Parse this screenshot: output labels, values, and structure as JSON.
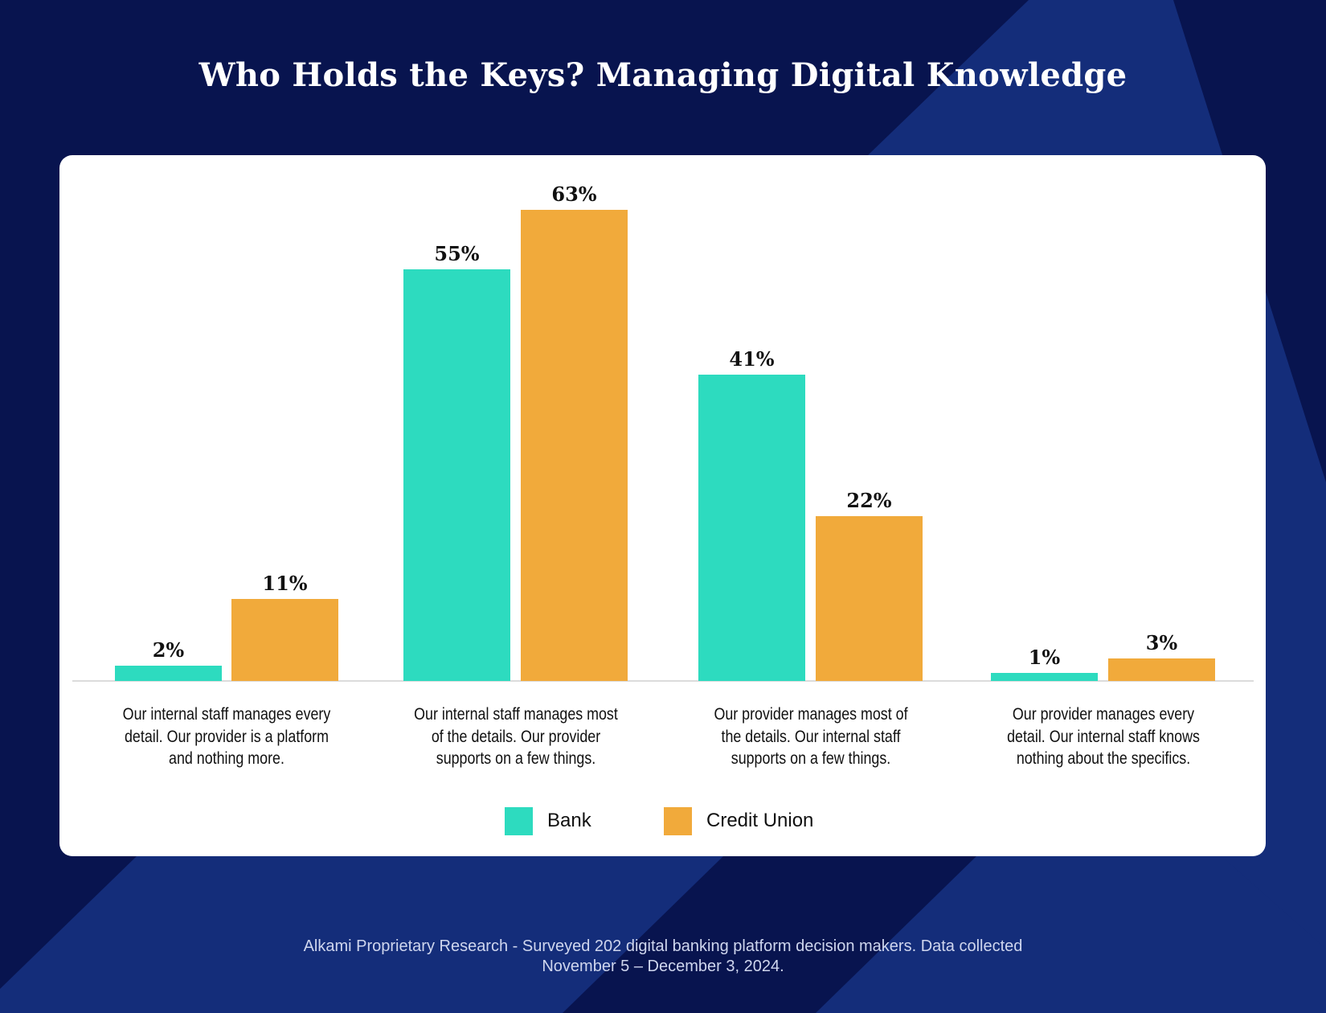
{
  "title": "Who Holds the Keys? Managing Digital Knowledge",
  "colors": {
    "background": "#08144f",
    "stripe": "#142d7a",
    "bank": "#2ddbbf",
    "credit_union": "#f1aa3b"
  },
  "legend": [
    {
      "label": "Bank",
      "color": "#2ddbbf"
    },
    {
      "label": "Credit Union",
      "color": "#f1aa3b"
    }
  ],
  "chart_data": {
    "type": "bar",
    "title": "Who Holds the Keys? Managing Digital Knowledge",
    "categories": [
      "Our internal staff manages every detail. Our provider is a platform and nothing more.",
      "Our internal staff manages most of the details. Our provider supports on a few things.",
      "Our provider manages most of the details. Our internal staff supports on a few things.",
      "Our provider manages every detail. Our internal staff knows nothing about the specifics."
    ],
    "series": [
      {
        "name": "Bank",
        "values": [
          2,
          55,
          41,
          1
        ],
        "labels": [
          "2%",
          "55%",
          "41%",
          "1%"
        ]
      },
      {
        "name": "Credit Union",
        "values": [
          11,
          63,
          22,
          3
        ],
        "labels": [
          "11%",
          "63%",
          "22%",
          "3%"
        ]
      }
    ],
    "xlabel": "",
    "ylabel": "",
    "ylim": [
      0,
      63
    ],
    "grid": false,
    "legend_position": "bottom"
  },
  "category_lines": [
    [
      "Our internal staff manages every",
      "detail. Our provider is a platform",
      "and nothing more."
    ],
    [
      "Our internal staff manages most",
      "of the details. Our provider",
      "supports on a few things."
    ],
    [
      "Our provider manages most of",
      "the details. Our internal staff",
      "supports on a few things."
    ],
    [
      "Our provider manages every",
      "detail. Our internal staff knows",
      "nothing about the specifics."
    ]
  ],
  "footer": {
    "line1": "Alkami Proprietary Research - Surveyed 202 digital banking platform decision makers. Data collected",
    "line2": "November 5 – December 3, 2024."
  }
}
